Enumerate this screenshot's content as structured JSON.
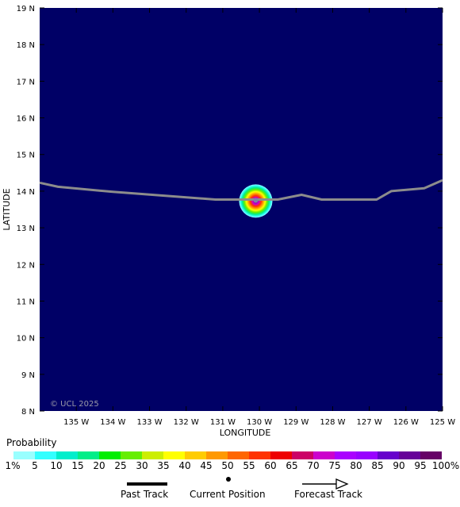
{
  "map": {
    "copyright": "© UCL 2025",
    "background_color": "#000066",
    "lon_range": [
      -136,
      -125
    ],
    "lat_range": [
      8,
      19
    ],
    "x_title": "LONGITUDE",
    "y_title": "LATITUDE",
    "lon_ticks": [
      {
        "value": -135,
        "label": "135 W"
      },
      {
        "value": -134,
        "label": "134 W"
      },
      {
        "value": -133,
        "label": "133 W"
      },
      {
        "value": -132,
        "label": "132 W"
      },
      {
        "value": -131,
        "label": "131 W"
      },
      {
        "value": -130,
        "label": "130 W"
      },
      {
        "value": -129,
        "label": "129 W"
      },
      {
        "value": -128,
        "label": "128 W"
      },
      {
        "value": -127,
        "label": "127 W"
      },
      {
        "value": -126,
        "label": "126 W"
      },
      {
        "value": -125,
        "label": "125 W"
      }
    ],
    "lat_ticks": [
      {
        "value": 19,
        "label": "19 N"
      },
      {
        "value": 18,
        "label": "18 N"
      },
      {
        "value": 17,
        "label": "17 N"
      },
      {
        "value": 16,
        "label": "16 N"
      },
      {
        "value": 15,
        "label": "15 N"
      },
      {
        "value": 14,
        "label": "14 N"
      },
      {
        "value": 13,
        "label": "13 N"
      },
      {
        "value": 12,
        "label": "12 N"
      },
      {
        "value": 11,
        "label": "11 N"
      },
      {
        "value": 10,
        "label": "10 N"
      },
      {
        "value": 9,
        "label": "9 N"
      },
      {
        "value": 8,
        "label": "8 N"
      }
    ],
    "past_track": [
      [
        -136,
        14.23
      ],
      [
        -135.5,
        14.12
      ],
      [
        -134,
        13.98
      ],
      [
        -131.2,
        13.77
      ],
      [
        -130.3,
        13.77
      ],
      [
        -129.5,
        13.77
      ],
      [
        -128.85,
        13.9
      ],
      [
        -128.3,
        13.77
      ],
      [
        -126.8,
        13.77
      ],
      [
        -126.4,
        14.0
      ],
      [
        -125.5,
        14.08
      ],
      [
        -125,
        14.3
      ]
    ],
    "current_position": {
      "lon": -130.1,
      "lat": 13.75
    },
    "probability_blob": {
      "lon": -130.1,
      "lat": 13.73
    }
  },
  "legend": {
    "title": "Probability",
    "colors": [
      "#99ffff",
      "#33ffff",
      "#00eecc",
      "#00ee88",
      "#00ee00",
      "#66ee00",
      "#ccee00",
      "#ffff00",
      "#ffcc00",
      "#ff9900",
      "#ff6600",
      "#ff3300",
      "#ee0000",
      "#cc0066",
      "#cc00cc",
      "#aa00ff",
      "#9900ff",
      "#6600cc",
      "#660099",
      "#660066"
    ],
    "labels": [
      "1%",
      "5",
      "10",
      "15",
      "20",
      "25",
      "30",
      "35",
      "40",
      "45",
      "50",
      "55",
      "60",
      "65",
      "70",
      "75",
      "80",
      "85",
      "90",
      "95",
      "100%"
    ]
  },
  "key": {
    "past_track": "Past Track",
    "current_position": "Current Position",
    "forecast_track": "Forecast Track"
  }
}
